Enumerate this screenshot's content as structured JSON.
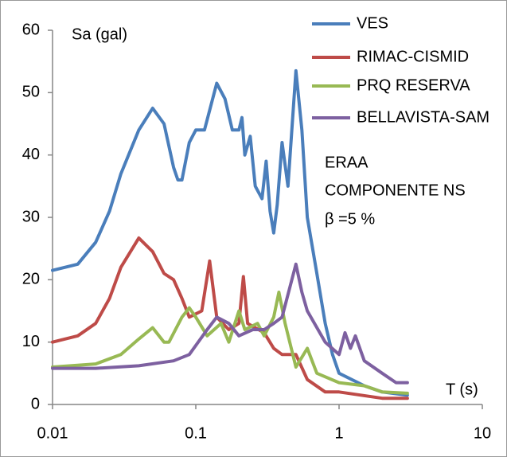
{
  "chart_data": {
    "type": "line",
    "ylabel": "Sa (gal)",
    "xlabel": "T (s)",
    "annotations": [
      "ERAA",
      "COMPONENTE NS",
      "β =5 %"
    ],
    "xscale": "log",
    "xlim": [
      0.01,
      10
    ],
    "xticks": [
      0.01,
      0.1,
      1,
      10
    ],
    "ylim": [
      0,
      60
    ],
    "yticks": [
      0,
      10,
      20,
      30,
      40,
      50,
      60
    ],
    "grid": false,
    "legend": "top-right",
    "series": [
      {
        "name": "VES",
        "color": "#4a7ebb",
        "x": [
          0.01,
          0.015,
          0.02,
          0.025,
          0.03,
          0.04,
          0.05,
          0.06,
          0.07,
          0.075,
          0.08,
          0.09,
          0.1,
          0.115,
          0.14,
          0.16,
          0.18,
          0.2,
          0.21,
          0.22,
          0.24,
          0.26,
          0.29,
          0.31,
          0.33,
          0.35,
          0.37,
          0.4,
          0.44,
          0.5,
          0.55,
          0.6,
          0.7,
          0.8,
          0.9,
          1.0,
          1.5,
          2,
          3
        ],
        "values": [
          21.5,
          22.5,
          26,
          31,
          37,
          44,
          47.5,
          45,
          38,
          36,
          36,
          42,
          44,
          44,
          51.5,
          49,
          44,
          44,
          46,
          40,
          43,
          35,
          33,
          39,
          31,
          27.5,
          32,
          42,
          35,
          53.5,
          44,
          30,
          21,
          13,
          8,
          5,
          3,
          2,
          1.5
        ]
      },
      {
        "name": "RIMAC-CISMID",
        "color": "#be4b48",
        "x": [
          0.01,
          0.015,
          0.02,
          0.025,
          0.03,
          0.04,
          0.05,
          0.06,
          0.07,
          0.08,
          0.09,
          0.11,
          0.125,
          0.14,
          0.17,
          0.2,
          0.215,
          0.23,
          0.3,
          0.35,
          0.4,
          0.5,
          0.6,
          0.8,
          1,
          2,
          3
        ],
        "values": [
          10,
          11,
          13,
          17,
          22,
          26.7,
          24.5,
          21,
          20,
          17,
          14,
          15,
          23,
          14,
          12,
          13,
          20.5,
          13,
          11.5,
          9,
          8,
          8,
          4,
          2,
          2,
          1,
          1
        ]
      },
      {
        "name": "PRQ RESERVA",
        "color": "#98b954",
        "x": [
          0.01,
          0.02,
          0.03,
          0.04,
          0.05,
          0.06,
          0.065,
          0.08,
          0.09,
          0.1,
          0.12,
          0.15,
          0.17,
          0.2,
          0.22,
          0.27,
          0.3,
          0.35,
          0.38,
          0.42,
          0.5,
          0.6,
          0.7,
          1,
          1.5,
          2,
          3
        ],
        "values": [
          6,
          6.5,
          8,
          10.5,
          12.3,
          10,
          10,
          14,
          15.5,
          14,
          11,
          13,
          10,
          15,
          12,
          13,
          11,
          14,
          18,
          13,
          6,
          9,
          5,
          3.5,
          3,
          2,
          1.8
        ]
      },
      {
        "name": "BELLAVISTA-SAM",
        "color": "#7d60a0",
        "x": [
          0.01,
          0.02,
          0.04,
          0.07,
          0.09,
          0.12,
          0.14,
          0.17,
          0.2,
          0.25,
          0.3,
          0.35,
          0.4,
          0.5,
          0.55,
          0.6,
          0.8,
          1.0,
          1.1,
          1.2,
          1.3,
          1.5,
          2,
          2.5,
          3
        ],
        "values": [
          5.8,
          5.8,
          6.2,
          7,
          8,
          12,
          14,
          13,
          11,
          12,
          12,
          13,
          14,
          22.5,
          18,
          15,
          10,
          8,
          11.5,
          9,
          11,
          7,
          5,
          3.5,
          3.5
        ]
      }
    ]
  }
}
